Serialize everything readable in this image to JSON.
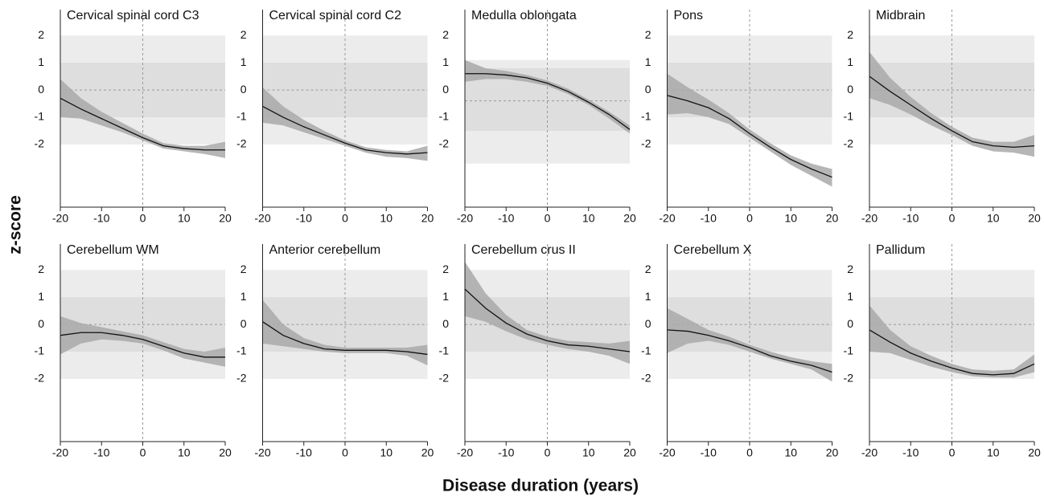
{
  "x_label": "Disease duration (years)",
  "y_label": "z-score",
  "chart_data": [
    {
      "type": "line",
      "title": "Cervical spinal cord C3",
      "x": [
        -20,
        -15,
        -10,
        -5,
        0,
        5,
        10,
        15,
        20
      ],
      "values": [
        -0.3,
        -0.7,
        -1.05,
        -1.4,
        -1.75,
        -2.05,
        -2.15,
        -2.2,
        -2.2
      ],
      "lower": [
        -1.0,
        -1.05,
        -1.3,
        -1.55,
        -1.85,
        -2.15,
        -2.25,
        -2.35,
        -2.5
      ],
      "upper": [
        0.4,
        -0.3,
        -0.8,
        -1.2,
        -1.6,
        -1.95,
        -2.05,
        -2.05,
        -1.9
      ],
      "color": "#111111",
      "band_color": "#a9a9a9",
      "zones": [
        {
          "from": -2,
          "to": 2,
          "color": "#ececec"
        },
        {
          "from": -1,
          "to": 1,
          "color": "#dedede"
        }
      ],
      "ref_line": 0,
      "vline": 0,
      "xlim": [
        -20,
        20
      ],
      "ylim": [
        -4.3,
        2.95
      ],
      "xticks": [
        -20,
        -10,
        0,
        10,
        20
      ],
      "yticks": [
        -2,
        -1,
        0,
        1,
        2
      ]
    },
    {
      "type": "line",
      "title": "Cervical spinal cord C2",
      "x": [
        -20,
        -15,
        -10,
        -5,
        0,
        5,
        10,
        15,
        20
      ],
      "values": [
        -0.6,
        -1.0,
        -1.35,
        -1.65,
        -1.95,
        -2.2,
        -2.3,
        -2.35,
        -2.3
      ],
      "lower": [
        -1.2,
        -1.3,
        -1.55,
        -1.8,
        -2.05,
        -2.3,
        -2.45,
        -2.5,
        -2.6
      ],
      "upper": [
        0.1,
        -0.6,
        -1.1,
        -1.5,
        -1.85,
        -2.1,
        -2.2,
        -2.25,
        -2.05
      ],
      "color": "#111111",
      "band_color": "#a9a9a9",
      "zones": [
        {
          "from": -2,
          "to": 2,
          "color": "#ececec"
        },
        {
          "from": -1,
          "to": 1,
          "color": "#dedede"
        }
      ],
      "ref_line": 0,
      "vline": 0,
      "xlim": [
        -20,
        20
      ],
      "ylim": [
        -4.3,
        2.95
      ],
      "xticks": [
        -20,
        -10,
        0,
        10,
        20
      ],
      "yticks": [
        -2,
        -1,
        0,
        1,
        2
      ]
    },
    {
      "type": "line",
      "title": "Medulla oblongata",
      "x": [
        -20,
        -15,
        -10,
        -5,
        0,
        5,
        10,
        15,
        20
      ],
      "values": [
        0.6,
        0.6,
        0.55,
        0.45,
        0.25,
        -0.05,
        -0.45,
        -0.9,
        -1.45
      ],
      "lower": [
        0.3,
        0.4,
        0.4,
        0.3,
        0.15,
        -0.15,
        -0.55,
        -1.05,
        -1.6
      ],
      "upper": [
        1.1,
        0.8,
        0.7,
        0.55,
        0.35,
        0.05,
        -0.35,
        -0.8,
        -1.3
      ],
      "color": "#111111",
      "band_color": "#a9a9a9",
      "zones": [
        {
          "from": -2.7,
          "to": 1.1,
          "color": "#ececec"
        },
        {
          "from": -1.5,
          "to": 0.8,
          "color": "#dedede"
        }
      ],
      "ref_line": -0.4,
      "vline": 0,
      "xlim": [
        -20,
        20
      ],
      "ylim": [
        -4.3,
        2.95
      ],
      "xticks": [
        -20,
        -10,
        0,
        10,
        20
      ],
      "yticks": [
        -2,
        -1,
        0,
        1,
        2
      ]
    },
    {
      "type": "line",
      "title": "Pons",
      "x": [
        -20,
        -15,
        -10,
        -5,
        0,
        5,
        10,
        15,
        20
      ],
      "values": [
        -0.2,
        -0.4,
        -0.65,
        -1.05,
        -1.6,
        -2.1,
        -2.55,
        -2.9,
        -3.2
      ],
      "lower": [
        -0.9,
        -0.85,
        -1.0,
        -1.25,
        -1.75,
        -2.25,
        -2.75,
        -3.15,
        -3.55
      ],
      "upper": [
        0.6,
        0.1,
        -0.35,
        -0.85,
        -1.45,
        -1.95,
        -2.4,
        -2.7,
        -2.9
      ],
      "color": "#111111",
      "band_color": "#a9a9a9",
      "zones": [
        {
          "from": -2,
          "to": 2,
          "color": "#ececec"
        },
        {
          "from": -1,
          "to": 1,
          "color": "#dedede"
        }
      ],
      "ref_line": 0,
      "vline": 0,
      "xlim": [
        -20,
        20
      ],
      "ylim": [
        -4.3,
        2.95
      ],
      "xticks": [
        -20,
        -10,
        0,
        10,
        20
      ],
      "yticks": [
        -2,
        -1,
        0,
        1,
        2
      ]
    },
    {
      "type": "line",
      "title": "Midbrain",
      "x": [
        -20,
        -15,
        -10,
        -5,
        0,
        5,
        10,
        15,
        20
      ],
      "values": [
        0.5,
        -0.05,
        -0.55,
        -1.05,
        -1.5,
        -1.9,
        -2.05,
        -2.1,
        -2.05
      ],
      "lower": [
        -0.3,
        -0.55,
        -0.9,
        -1.3,
        -1.65,
        -2.05,
        -2.25,
        -2.3,
        -2.45
      ],
      "upper": [
        1.4,
        0.45,
        -0.25,
        -0.85,
        -1.35,
        -1.75,
        -1.9,
        -1.9,
        -1.65
      ],
      "color": "#111111",
      "band_color": "#a9a9a9",
      "zones": [
        {
          "from": -2,
          "to": 2,
          "color": "#ececec"
        },
        {
          "from": -1,
          "to": 1,
          "color": "#dedede"
        }
      ],
      "ref_line": 0,
      "vline": 0,
      "xlim": [
        -20,
        20
      ],
      "ylim": [
        -4.3,
        2.95
      ],
      "xticks": [
        -20,
        -10,
        0,
        10,
        20
      ],
      "yticks": [
        -2,
        -1,
        0,
        1,
        2
      ]
    },
    {
      "type": "line",
      "title": "Cerebellum WM",
      "x": [
        -20,
        -15,
        -10,
        -5,
        0,
        5,
        10,
        15,
        20
      ],
      "values": [
        -0.4,
        -0.3,
        -0.3,
        -0.4,
        -0.55,
        -0.8,
        -1.05,
        -1.2,
        -1.2
      ],
      "lower": [
        -1.1,
        -0.7,
        -0.55,
        -0.6,
        -0.7,
        -0.95,
        -1.25,
        -1.4,
        -1.55
      ],
      "upper": [
        0.3,
        0.05,
        -0.1,
        -0.25,
        -0.4,
        -0.65,
        -0.9,
        -1.0,
        -0.85
      ],
      "color": "#111111",
      "band_color": "#a9a9a9",
      "zones": [
        {
          "from": -2,
          "to": 2,
          "color": "#ececec"
        },
        {
          "from": -1,
          "to": 1,
          "color": "#dedede"
        }
      ],
      "ref_line": 0,
      "vline": 0,
      "xlim": [
        -20,
        20
      ],
      "ylim": [
        -4.3,
        2.95
      ],
      "xticks": [
        -20,
        -10,
        0,
        10,
        20
      ],
      "yticks": [
        -2,
        -1,
        0,
        1,
        2
      ]
    },
    {
      "type": "line",
      "title": "Anterior cerebellum",
      "x": [
        -20,
        -15,
        -10,
        -5,
        0,
        5,
        10,
        15,
        20
      ],
      "values": [
        0.1,
        -0.4,
        -0.7,
        -0.9,
        -0.95,
        -0.95,
        -0.95,
        -1.0,
        -1.1
      ],
      "lower": [
        -0.7,
        -0.8,
        -0.9,
        -1.0,
        -1.05,
        -1.05,
        -1.05,
        -1.15,
        -1.5
      ],
      "upper": [
        0.9,
        0.0,
        -0.5,
        -0.75,
        -0.85,
        -0.85,
        -0.85,
        -0.85,
        -0.75
      ],
      "color": "#111111",
      "band_color": "#a9a9a9",
      "zones": [
        {
          "from": -2,
          "to": 2,
          "color": "#ececec"
        },
        {
          "from": -1,
          "to": 1,
          "color": "#dedede"
        }
      ],
      "ref_line": 0,
      "vline": 0,
      "xlim": [
        -20,
        20
      ],
      "ylim": [
        -4.3,
        2.95
      ],
      "xticks": [
        -20,
        -10,
        0,
        10,
        20
      ],
      "yticks": [
        -2,
        -1,
        0,
        1,
        2
      ]
    },
    {
      "type": "line",
      "title": "Cerebellum crus II",
      "x": [
        -20,
        -15,
        -10,
        -5,
        0,
        5,
        10,
        15,
        20
      ],
      "values": [
        1.3,
        0.6,
        0.05,
        -0.35,
        -0.6,
        -0.75,
        -0.8,
        -0.9,
        -1.0
      ],
      "lower": [
        0.3,
        0.1,
        -0.25,
        -0.55,
        -0.75,
        -0.9,
        -1.0,
        -1.15,
        -1.45
      ],
      "upper": [
        2.3,
        1.15,
        0.35,
        -0.2,
        -0.45,
        -0.6,
        -0.65,
        -0.7,
        -0.6
      ],
      "color": "#111111",
      "band_color": "#a9a9a9",
      "zones": [
        {
          "from": -2,
          "to": 2,
          "color": "#ececec"
        },
        {
          "from": -1,
          "to": 1,
          "color": "#dedede"
        }
      ],
      "ref_line": 0,
      "vline": 0,
      "xlim": [
        -20,
        20
      ],
      "ylim": [
        -4.3,
        2.95
      ],
      "xticks": [
        -20,
        -10,
        0,
        10,
        20
      ],
      "yticks": [
        -2,
        -1,
        0,
        1,
        2
      ]
    },
    {
      "type": "line",
      "title": "Cerebellum X",
      "x": [
        -20,
        -15,
        -10,
        -5,
        0,
        5,
        10,
        15,
        20
      ],
      "values": [
        -0.2,
        -0.25,
        -0.4,
        -0.6,
        -0.85,
        -1.15,
        -1.35,
        -1.5,
        -1.75
      ],
      "lower": [
        -1.05,
        -0.7,
        -0.6,
        -0.75,
        -1.0,
        -1.25,
        -1.45,
        -1.65,
        -2.1
      ],
      "upper": [
        0.6,
        0.2,
        -0.2,
        -0.45,
        -0.75,
        -1.0,
        -1.2,
        -1.35,
        -1.45
      ],
      "color": "#111111",
      "band_color": "#a9a9a9",
      "zones": [
        {
          "from": -2,
          "to": 2,
          "color": "#ececec"
        },
        {
          "from": -1,
          "to": 1,
          "color": "#dedede"
        }
      ],
      "ref_line": 0,
      "vline": 0,
      "xlim": [
        -20,
        20
      ],
      "ylim": [
        -4.3,
        2.95
      ],
      "xticks": [
        -20,
        -10,
        0,
        10,
        20
      ],
      "yticks": [
        -2,
        -1,
        0,
        1,
        2
      ]
    },
    {
      "type": "line",
      "title": "Pallidum",
      "x": [
        -20,
        -15,
        -10,
        -5,
        0,
        5,
        10,
        15,
        20
      ],
      "values": [
        -0.2,
        -0.65,
        -1.05,
        -1.35,
        -1.6,
        -1.8,
        -1.85,
        -1.8,
        -1.45
      ],
      "lower": [
        -1.0,
        -1.05,
        -1.3,
        -1.55,
        -1.75,
        -1.9,
        -1.95,
        -1.95,
        -1.75
      ],
      "upper": [
        0.7,
        -0.2,
        -0.8,
        -1.15,
        -1.45,
        -1.65,
        -1.7,
        -1.65,
        -1.1
      ],
      "color": "#111111",
      "band_color": "#a9a9a9",
      "zones": [
        {
          "from": -2,
          "to": 2,
          "color": "#ececec"
        },
        {
          "from": -1,
          "to": 1,
          "color": "#dedede"
        }
      ],
      "ref_line": 0,
      "vline": 0,
      "xlim": [
        -20,
        20
      ],
      "ylim": [
        -4.3,
        2.95
      ],
      "xticks": [
        -20,
        -10,
        0,
        10,
        20
      ],
      "yticks": [
        -2,
        -1,
        0,
        1,
        2
      ]
    }
  ]
}
